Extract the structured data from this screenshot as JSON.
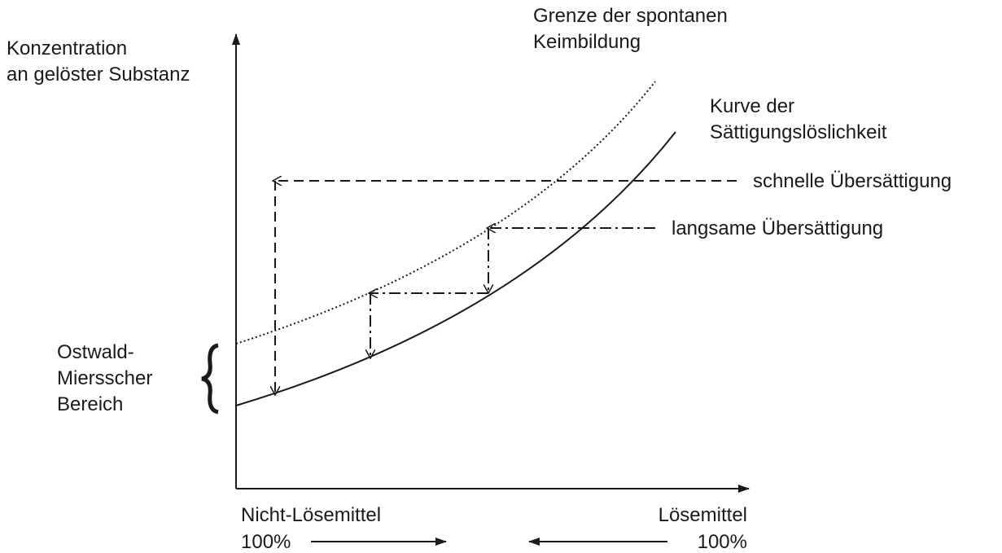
{
  "y_axis_label": [
    "Konzentration",
    "an gelöster Substanz"
  ],
  "upper_curve_label": [
    "Grenze der spontanen",
    "Keimbildung"
  ],
  "lower_curve_label": [
    "Kurve der",
    "Sättigungslöslichkeit"
  ],
  "fast_label": "schnelle Übersättigung",
  "slow_label": "langsame Übersättigung",
  "region_label": [
    "Ostwald-",
    "Miersscher",
    "Bereich"
  ],
  "x_left_label": "Nicht-Lösemittel",
  "x_right_label": "Lösemittel",
  "x_left_percent": "100%",
  "x_right_percent": "100%"
}
